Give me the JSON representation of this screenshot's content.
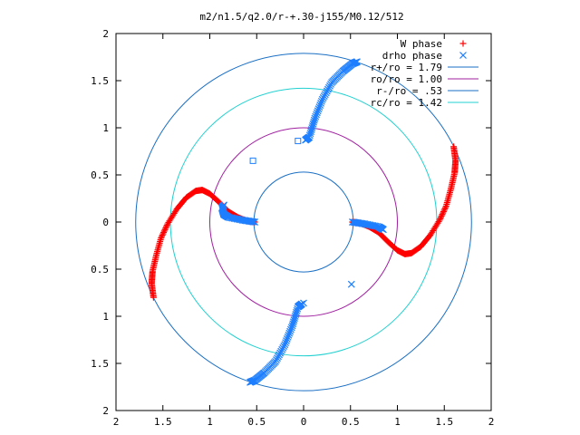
{
  "chart_data": {
    "type": "scatter",
    "title": "m2/n1.5/q2.0/r-+.30-j155/M0.12/512",
    "xlim": [
      -2,
      2
    ],
    "ylim": [
      -2,
      2
    ],
    "x_ticks": [
      {
        "v": -2,
        "label": "2"
      },
      {
        "v": -1.5,
        "label": "1.5"
      },
      {
        "v": -1,
        "label": "1"
      },
      {
        "v": -0.5,
        "label": "0.5"
      },
      {
        "v": 0,
        "label": "0"
      },
      {
        "v": 0.5,
        "label": "0.5"
      },
      {
        "v": 1,
        "label": "1"
      },
      {
        "v": 1.5,
        "label": "1.5"
      },
      {
        "v": 2,
        "label": "2"
      }
    ],
    "y_ticks": [
      {
        "v": 2,
        "label": "2"
      },
      {
        "v": 1.5,
        "label": "1.5"
      },
      {
        "v": 1,
        "label": "1"
      },
      {
        "v": 0.5,
        "label": "0.5"
      },
      {
        "v": 0,
        "label": "0"
      },
      {
        "v": -0.5,
        "label": "0.5"
      },
      {
        "v": -1,
        "label": "1"
      },
      {
        "v": -1.5,
        "label": "1.5"
      },
      {
        "v": -2,
        "label": "2"
      }
    ],
    "grid": false,
    "legend_position": "top-right",
    "series": [
      {
        "name": "W phase",
        "marker": "plus",
        "color": "#ff0000",
        "arms": [
          [
            [
              0.52,
              0.0
            ],
            [
              0.6,
              -0.01
            ],
            [
              0.7,
              -0.05
            ],
            [
              0.8,
              -0.11
            ],
            [
              0.9,
              -0.21
            ],
            [
              1.0,
              -0.3
            ],
            [
              1.08,
              -0.34
            ],
            [
              1.15,
              -0.33
            ],
            [
              1.25,
              -0.26
            ],
            [
              1.35,
              -0.14
            ],
            [
              1.45,
              0.02
            ],
            [
              1.52,
              0.17
            ],
            [
              1.57,
              0.35
            ],
            [
              1.61,
              0.52
            ],
            [
              1.62,
              0.65
            ],
            [
              1.6,
              0.8
            ]
          ],
          [
            [
              -0.52,
              0.0
            ],
            [
              -0.6,
              0.01
            ],
            [
              -0.7,
              0.05
            ],
            [
              -0.8,
              0.11
            ],
            [
              -0.9,
              0.21
            ],
            [
              -1.0,
              0.3
            ],
            [
              -1.08,
              0.34
            ],
            [
              -1.15,
              0.33
            ],
            [
              -1.25,
              0.26
            ],
            [
              -1.35,
              0.14
            ],
            [
              -1.45,
              -0.02
            ],
            [
              -1.52,
              -0.17
            ],
            [
              -1.57,
              -0.35
            ],
            [
              -1.61,
              -0.52
            ],
            [
              -1.62,
              -0.65
            ],
            [
              -1.6,
              -0.8
            ]
          ]
        ]
      },
      {
        "name": "drho phase",
        "marker": "x",
        "color": "#1e7fff",
        "arms": [
          [
            [
              0.52,
              0.0
            ],
            [
              0.65,
              -0.02
            ],
            [
              0.8,
              -0.05
            ],
            [
              0.85,
              -0.08
            ]
          ],
          [
            [
              -0.52,
              0.0
            ],
            [
              -0.65,
              0.02
            ],
            [
              -0.8,
              0.05
            ],
            [
              -0.85,
              0.08
            ],
            [
              -0.87,
              0.15
            ],
            [
              -0.85,
              0.18
            ]
          ],
          [
            [
              0.02,
              0.87
            ],
            [
              0.06,
              0.9
            ],
            [
              0.12,
              1.1
            ],
            [
              0.2,
              1.3
            ],
            [
              0.3,
              1.48
            ],
            [
              0.42,
              1.6
            ],
            [
              0.52,
              1.68
            ],
            [
              0.57,
              1.7
            ]
          ],
          [
            [
              -0.02,
              -0.87
            ],
            [
              -0.06,
              -0.9
            ],
            [
              -0.12,
              -1.1
            ],
            [
              -0.2,
              -1.3
            ],
            [
              -0.3,
              -1.48
            ],
            [
              -0.42,
              -1.6
            ],
            [
              -0.52,
              -1.68
            ],
            [
              -0.57,
              -1.7
            ]
          ]
        ],
        "outliers": [
          [
            0.51,
            -0.66
          ],
          [
            0.0,
            -0.86
          ],
          [
            -0.06,
            0.86
          ],
          [
            -0.54,
            0.65
          ]
        ]
      }
    ],
    "circles": [
      {
        "name": "r+/ro = 1.79",
        "radius": 1.79,
        "color": "#1a6fc4"
      },
      {
        "name": "ro/ro = 1.00",
        "radius": 1.0,
        "color": "#a020a0"
      },
      {
        "name": "r-/ro = .53",
        "radius": 0.53,
        "color": "#1a6fc4"
      },
      {
        "name": "rc/ro = 1.42",
        "radius": 1.42,
        "color": "#22d0d0"
      }
    ]
  }
}
